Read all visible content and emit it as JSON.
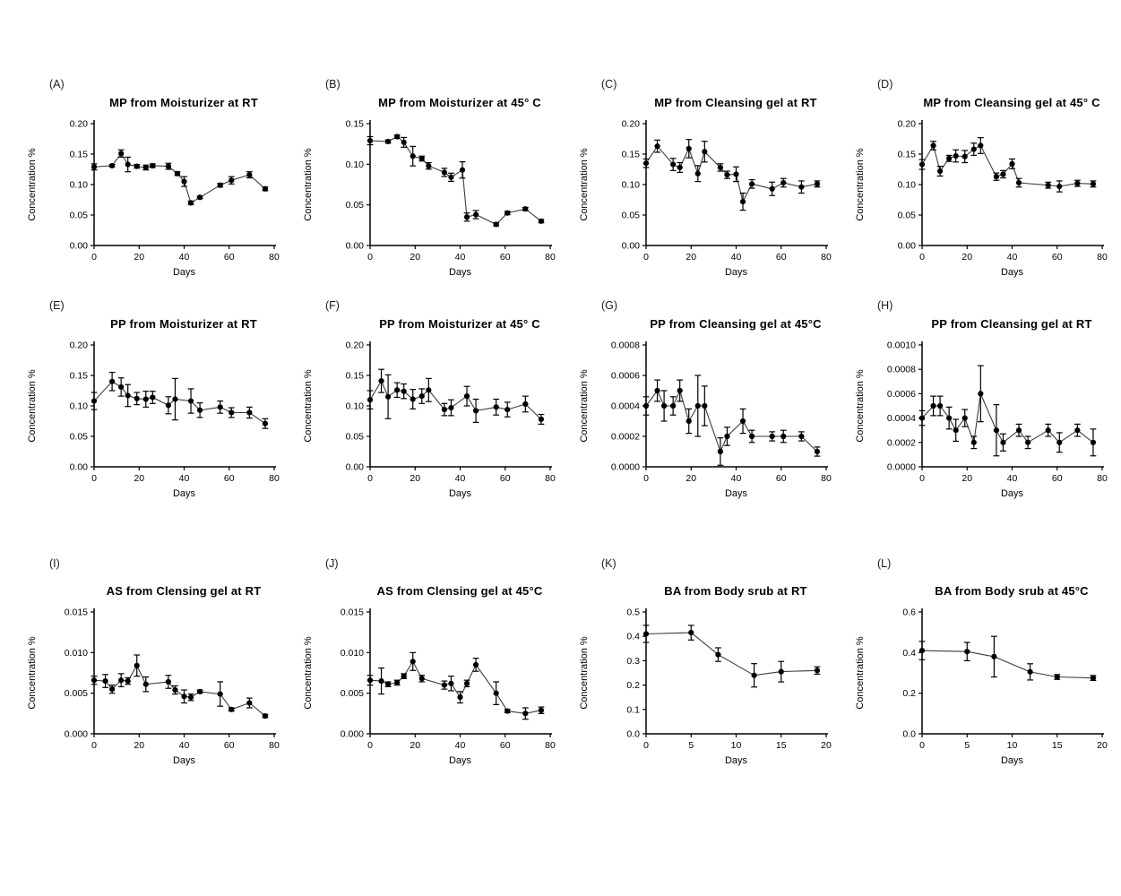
{
  "figure": {
    "xlabel_all": "Days",
    "ylabel_all": "Concentration %",
    "marker_color": "#000000",
    "line_color": "#3d3d3d"
  },
  "chart_data": [
    {
      "panel": "(A)",
      "title": "MP from Moisturizer at RT",
      "type": "line",
      "xlabel": "Days",
      "ylabel": "Concentration %",
      "xlim": [
        0,
        80
      ],
      "ylim": [
        0,
        0.2
      ],
      "xticks": [
        0,
        20,
        40,
        60,
        80
      ],
      "xtick_labels": [
        "0",
        "20",
        "40",
        "60",
        "80"
      ],
      "yticks": [
        0,
        0.05,
        0.1,
        0.15,
        0.2
      ],
      "ytick_labels": [
        "0.00",
        "0.05",
        "0.10",
        "0.15",
        "0.20"
      ],
      "x": [
        0,
        8,
        12,
        15,
        19,
        23,
        26,
        33,
        37,
        40,
        43,
        47,
        56,
        61,
        69,
        76
      ],
      "y": [
        0.129,
        0.131,
        0.151,
        0.133,
        0.13,
        0.128,
        0.131,
        0.13,
        0.118,
        0.105,
        0.07,
        0.079,
        0.099,
        0.107,
        0.116,
        0.093
      ],
      "yerr": [
        0.005,
        0.002,
        0.006,
        0.012,
        0.003,
        0.004,
        0.003,
        0.005,
        0.003,
        0.008,
        0.003,
        0.002,
        0.003,
        0.006,
        0.005,
        0.003
      ]
    },
    {
      "panel": "(B)",
      "title": "MP from Moisturizer at 45° C",
      "type": "line",
      "xlabel": "Days",
      "ylabel": "Concentration %",
      "xlim": [
        0,
        80
      ],
      "ylim": [
        0,
        0.15
      ],
      "xticks": [
        0,
        20,
        40,
        60,
        80
      ],
      "xtick_labels": [
        "0",
        "20",
        "40",
        "60",
        "80"
      ],
      "yticks": [
        0,
        0.05,
        0.1,
        0.15
      ],
      "ytick_labels": [
        "0.00",
        "0.05",
        "0.10",
        "0.15"
      ],
      "x": [
        0,
        8,
        12,
        15,
        19,
        23,
        26,
        33,
        36,
        41,
        43,
        47,
        56,
        61,
        69,
        76
      ],
      "y": [
        0.129,
        0.128,
        0.134,
        0.127,
        0.11,
        0.107,
        0.098,
        0.09,
        0.084,
        0.093,
        0.035,
        0.038,
        0.026,
        0.04,
        0.045,
        0.03
      ],
      "yerr": [
        0.005,
        0.002,
        0.002,
        0.006,
        0.012,
        0.003,
        0.004,
        0.005,
        0.005,
        0.01,
        0.005,
        0.005,
        0.002,
        0.002,
        0.002,
        0.002
      ]
    },
    {
      "panel": "(C)",
      "title": "MP from Cleansing gel at RT",
      "type": "line",
      "xlabel": "Days",
      "ylabel": "Concentration %",
      "xlim": [
        0,
        80
      ],
      "ylim": [
        0,
        0.2
      ],
      "xticks": [
        0,
        20,
        40,
        60,
        80
      ],
      "xtick_labels": [
        "0",
        "20",
        "40",
        "60",
        "80"
      ],
      "yticks": [
        0,
        0.05,
        0.1,
        0.15,
        0.2
      ],
      "ytick_labels": [
        "0.00",
        "0.05",
        "0.10",
        "0.15",
        "0.20"
      ],
      "x": [
        0,
        5,
        12,
        15,
        19,
        23,
        26,
        33,
        36,
        40,
        43,
        47,
        56,
        61,
        69,
        76
      ],
      "y": [
        0.135,
        0.163,
        0.133,
        0.128,
        0.159,
        0.118,
        0.154,
        0.128,
        0.116,
        0.117,
        0.072,
        0.101,
        0.093,
        0.103,
        0.096,
        0.101
      ],
      "yerr": [
        0.007,
        0.01,
        0.01,
        0.008,
        0.015,
        0.013,
        0.017,
        0.006,
        0.006,
        0.012,
        0.014,
        0.007,
        0.011,
        0.007,
        0.01,
        0.005
      ]
    },
    {
      "panel": "(D)",
      "title": "MP from Cleansing gel at 45° C",
      "type": "line",
      "xlabel": "Days",
      "ylabel": "Concentration %",
      "xlim": [
        0,
        80
      ],
      "ylim": [
        0,
        0.2
      ],
      "xticks": [
        0,
        20,
        40,
        60,
        80
      ],
      "xtick_labels": [
        "0",
        "20",
        "40",
        "60",
        "80"
      ],
      "yticks": [
        0,
        0.05,
        0.1,
        0.15,
        0.2
      ],
      "ytick_labels": [
        "0.00",
        "0.05",
        "0.10",
        "0.15",
        "0.20"
      ],
      "x": [
        0,
        5,
        8,
        12,
        15,
        19,
        23,
        26,
        33,
        36,
        40,
        43,
        56,
        61,
        69,
        76
      ],
      "y": [
        0.133,
        0.164,
        0.122,
        0.143,
        0.147,
        0.146,
        0.158,
        0.164,
        0.113,
        0.117,
        0.134,
        0.103,
        0.099,
        0.097,
        0.102,
        0.101
      ],
      "yerr": [
        0.008,
        0.007,
        0.008,
        0.005,
        0.01,
        0.01,
        0.01,
        0.013,
        0.006,
        0.006,
        0.008,
        0.007,
        0.005,
        0.009,
        0.005,
        0.005
      ]
    },
    {
      "panel": "(E)",
      "title": "PP from Moisturizer at RT",
      "type": "line",
      "xlabel": "Days",
      "ylabel": "Concentration %",
      "xlim": [
        0,
        80
      ],
      "ylim": [
        0,
        0.2
      ],
      "xticks": [
        0,
        20,
        40,
        60,
        80
      ],
      "xtick_labels": [
        "0",
        "20",
        "40",
        "60",
        "80"
      ],
      "yticks": [
        0,
        0.05,
        0.1,
        0.15,
        0.2
      ],
      "ytick_labels": [
        "0.00",
        "0.05",
        "0.10",
        "0.15",
        "0.20"
      ],
      "x": [
        0,
        8,
        12,
        15,
        19,
        23,
        26,
        33,
        36,
        43,
        47,
        56,
        61,
        69,
        76
      ],
      "y": [
        0.108,
        0.14,
        0.131,
        0.117,
        0.112,
        0.111,
        0.114,
        0.101,
        0.111,
        0.108,
        0.093,
        0.098,
        0.089,
        0.089,
        0.071
      ],
      "yerr": [
        0.014,
        0.015,
        0.015,
        0.018,
        0.01,
        0.013,
        0.01,
        0.014,
        0.034,
        0.02,
        0.012,
        0.01,
        0.008,
        0.009,
        0.008
      ]
    },
    {
      "panel": "(F)",
      "title": "PP from Moisturizer at 45° C",
      "type": "line",
      "xlabel": "Days",
      "ylabel": "Concentration %",
      "xlim": [
        0,
        80
      ],
      "ylim": [
        0,
        0.2
      ],
      "xticks": [
        0,
        20,
        40,
        60,
        80
      ],
      "xtick_labels": [
        "0",
        "20",
        "40",
        "60",
        "80"
      ],
      "yticks": [
        0,
        0.05,
        0.1,
        0.15,
        0.2
      ],
      "ytick_labels": [
        "0.00",
        "0.05",
        "0.10",
        "0.15",
        "0.20"
      ],
      "x": [
        0,
        5,
        8,
        12,
        15,
        19,
        23,
        26,
        33,
        36,
        43,
        47,
        56,
        61,
        69,
        76
      ],
      "y": [
        0.11,
        0.141,
        0.115,
        0.126,
        0.124,
        0.111,
        0.116,
        0.126,
        0.094,
        0.097,
        0.116,
        0.092,
        0.098,
        0.094,
        0.103,
        0.078
      ],
      "yerr": [
        0.015,
        0.019,
        0.036,
        0.012,
        0.012,
        0.016,
        0.012,
        0.019,
        0.01,
        0.013,
        0.016,
        0.019,
        0.013,
        0.012,
        0.013,
        0.008
      ]
    },
    {
      "panel": "(G)",
      "title": "PP from Cleansing gel at 45°C",
      "type": "line",
      "xlabel": "Days",
      "ylabel": "Concentration %",
      "xlim": [
        0,
        80
      ],
      "ylim": [
        0,
        0.0008
      ],
      "xticks": [
        0,
        20,
        40,
        60,
        80
      ],
      "xtick_labels": [
        "0",
        "20",
        "40",
        "60",
        "80"
      ],
      "yticks": [
        0,
        0.0002,
        0.0004,
        0.0006,
        0.0008
      ],
      "ytick_labels": [
        "0.0000",
        "0.0002",
        "0.0004",
        "0.0006",
        "0.0008"
      ],
      "x": [
        0,
        5,
        8,
        12,
        15,
        19,
        23,
        26,
        33,
        36,
        43,
        47,
        56,
        61,
        69,
        76
      ],
      "y": [
        0.0004,
        0.0005,
        0.0004,
        0.0004,
        0.0005,
        0.0003,
        0.0004,
        0.0004,
        0.0001,
        0.0002,
        0.0003,
        0.0002,
        0.0002,
        0.0002,
        0.0002,
        0.0001
      ],
      "yerr": [
        6e-05,
        7e-05,
        0.0001,
        6e-05,
        7e-05,
        8e-05,
        0.0002,
        0.00013,
        9e-05,
        6e-05,
        8e-05,
        4e-05,
        3e-05,
        4e-05,
        3e-05,
        3e-05
      ]
    },
    {
      "panel": "(H)",
      "title": "PP from Cleansing gel at RT",
      "type": "line",
      "xlabel": "Days",
      "ylabel": "Concentration %",
      "xlim": [
        0,
        80
      ],
      "ylim": [
        0,
        0.001
      ],
      "xticks": [
        0,
        20,
        40,
        60,
        80
      ],
      "xtick_labels": [
        "0",
        "20",
        "40",
        "60",
        "80"
      ],
      "yticks": [
        0,
        0.0002,
        0.0004,
        0.0006,
        0.0008,
        0.001
      ],
      "ytick_labels": [
        "0.0000",
        "0.0002",
        "0.0004",
        "0.0006",
        "0.0008",
        "0.0010"
      ],
      "x": [
        0,
        5,
        8,
        12,
        15,
        19,
        23,
        26,
        33,
        36,
        43,
        47,
        56,
        61,
        69,
        76
      ],
      "y": [
        0.0004,
        0.0005,
        0.0005,
        0.0004,
        0.0003,
        0.0004,
        0.0002,
        0.0006,
        0.0003,
        0.0002,
        0.0003,
        0.0002,
        0.0003,
        0.0002,
        0.0003,
        0.0002
      ],
      "yerr": [
        6e-05,
        8e-05,
        8e-05,
        9e-05,
        9e-05,
        7e-05,
        5e-05,
        0.00023,
        0.00021,
        7e-05,
        5e-05,
        5e-05,
        5e-05,
        8e-05,
        5e-05,
        0.00011
      ]
    },
    {
      "panel": "(I)",
      "title": "AS from Clensing gel at RT",
      "type": "line",
      "xlabel": "Days",
      "ylabel": "Concentration %",
      "xlim": [
        0,
        80
      ],
      "ylim": [
        0,
        0.015
      ],
      "xticks": [
        0,
        20,
        40,
        60,
        80
      ],
      "xtick_labels": [
        "0",
        "20",
        "40",
        "60",
        "80"
      ],
      "yticks": [
        0,
        0.005,
        0.01,
        0.015
      ],
      "ytick_labels": [
        "0.000",
        "0.005",
        "0.010",
        "0.015"
      ],
      "x": [
        0,
        5,
        8,
        12,
        15,
        19,
        23,
        33,
        36,
        40,
        43,
        47,
        56,
        61,
        69,
        76
      ],
      "y": [
        0.0066,
        0.0065,
        0.0055,
        0.0066,
        0.0065,
        0.0084,
        0.0061,
        0.0064,
        0.0054,
        0.0046,
        0.0045,
        0.0052,
        0.0049,
        0.003,
        0.0038,
        0.0022
      ],
      "yerr": [
        0.0005,
        0.0008,
        0.0005,
        0.0008,
        0.0004,
        0.0013,
        0.0009,
        0.0008,
        0.0005,
        0.0008,
        0.0004,
        0.0002,
        0.0015,
        0.0002,
        0.0006,
        0.0002
      ]
    },
    {
      "panel": "(J)",
      "title": "AS from Clensing gel at 45°C",
      "type": "line",
      "xlabel": "Days",
      "ylabel": "Concentration %",
      "xlim": [
        0,
        80
      ],
      "ylim": [
        0,
        0.015
      ],
      "xticks": [
        0,
        20,
        40,
        60,
        80
      ],
      "xtick_labels": [
        "0",
        "20",
        "40",
        "60",
        "80"
      ],
      "yticks": [
        0,
        0.005,
        0.01,
        0.015
      ],
      "ytick_labels": [
        "0.000",
        "0.005",
        "0.010",
        "0.015"
      ],
      "x": [
        0,
        5,
        8,
        12,
        15,
        19,
        23,
        33,
        36,
        40,
        43,
        47,
        56,
        61,
        69,
        76
      ],
      "y": [
        0.0066,
        0.0065,
        0.0061,
        0.0063,
        0.0071,
        0.0089,
        0.0068,
        0.006,
        0.0062,
        0.0045,
        0.0062,
        0.0085,
        0.005,
        0.0028,
        0.0025,
        0.0029
      ],
      "yerr": [
        0.0006,
        0.0016,
        0.0003,
        0.0003,
        0.0003,
        0.0011,
        0.0004,
        0.0005,
        0.0009,
        0.0007,
        0.0004,
        0.0008,
        0.0014,
        0.0002,
        0.0007,
        0.0004
      ]
    },
    {
      "panel": "(K)",
      "title": "BA from Body srub at RT",
      "type": "line",
      "xlabel": "Days",
      "ylabel": "Concentration %",
      "xlim": [
        0,
        20
      ],
      "ylim": [
        0,
        0.5
      ],
      "xticks": [
        0,
        5,
        10,
        15,
        20
      ],
      "xtick_labels": [
        "0",
        "5",
        "10",
        "15",
        "20"
      ],
      "yticks": [
        0,
        0.1,
        0.2,
        0.3,
        0.4,
        0.5
      ],
      "ytick_labels": [
        "0.0",
        "0.1",
        "0.2",
        "0.3",
        "0.4",
        "0.5"
      ],
      "x": [
        0,
        5,
        8,
        12,
        15,
        19
      ],
      "y": [
        0.41,
        0.415,
        0.325,
        0.24,
        0.255,
        0.26
      ],
      "yerr": [
        0.035,
        0.03,
        0.028,
        0.048,
        0.042,
        0.015
      ]
    },
    {
      "panel": "(L)",
      "title": "BA from Body srub at 45°C",
      "type": "line",
      "xlabel": "Days",
      "ylabel": "Concentration %",
      "xlim": [
        0,
        20
      ],
      "ylim": [
        0,
        0.6
      ],
      "xticks": [
        0,
        5,
        10,
        15,
        20
      ],
      "xtick_labels": [
        "0",
        "5",
        "10",
        "15",
        "20"
      ],
      "yticks": [
        0,
        0.2,
        0.4,
        0.6
      ],
      "ytick_labels": [
        "0.0",
        "0.2",
        "0.4",
        "0.6"
      ],
      "x": [
        0,
        5,
        8,
        12,
        15,
        19
      ],
      "y": [
        0.41,
        0.405,
        0.38,
        0.305,
        0.28,
        0.275
      ],
      "yerr": [
        0.045,
        0.045,
        0.1,
        0.04,
        0.012,
        0.012
      ]
    }
  ]
}
